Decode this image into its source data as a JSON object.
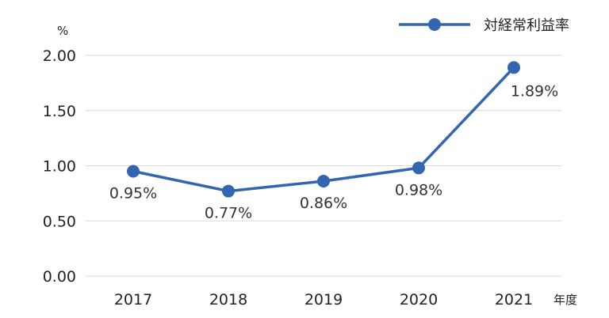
{
  "chart_data": {
    "type": "line",
    "ylabel": "%",
    "xlabel": "年度",
    "categories": [
      "2017",
      "2018",
      "2019",
      "2020",
      "2021"
    ],
    "series": [
      {
        "name": "対経常利益率",
        "values": [
          0.95,
          0.77,
          0.86,
          0.98,
          1.89
        ],
        "color": "#3366b0"
      }
    ],
    "data_labels": [
      "0.95%",
      "0.77%",
      "0.86%",
      "0.98%",
      "1.89%"
    ],
    "yticks": [
      "0.00",
      "0.50",
      "1.00",
      "1.50",
      "2.00"
    ],
    "ylim": [
      0,
      2
    ],
    "grid": true,
    "legend_position": "top-right"
  }
}
